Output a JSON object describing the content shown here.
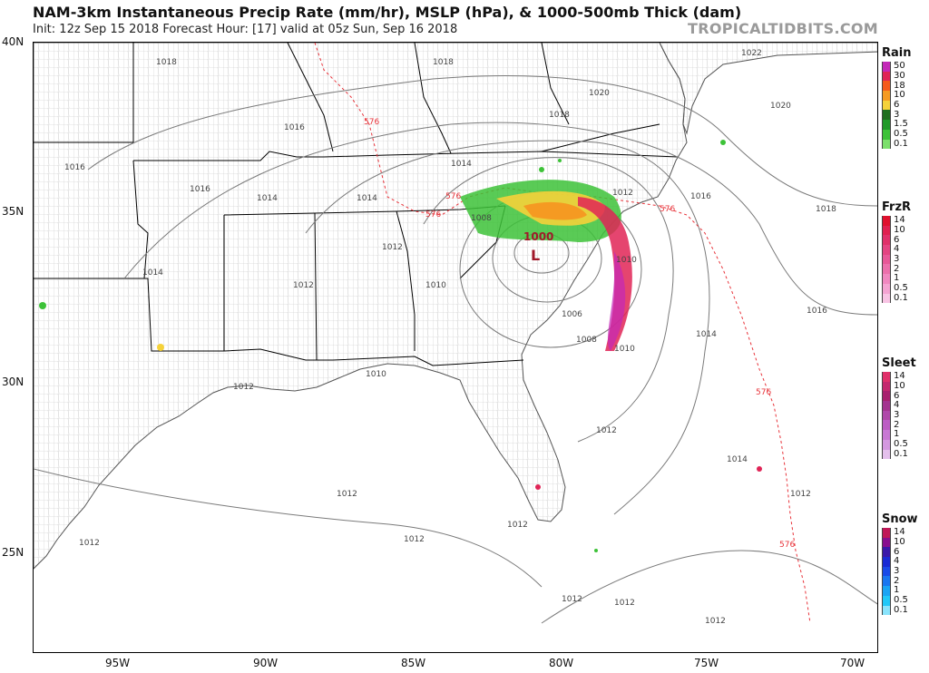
{
  "header": {
    "title": "NAM-3km Instantaneous Precip Rate (mm/hr), MSLP (hPa), & 1000-500mb Thick (dam)",
    "subtitle": "Init: 12z Sep 15 2018   Forecast Hour: [17]   valid at 05z Sun, Sep 16 2018",
    "brand": "TROPICALTIDBITS.COM"
  },
  "map": {
    "lat_labels": [
      "40N",
      "35N",
      "30N",
      "25N"
    ],
    "lon_labels": [
      "95W",
      "90W",
      "85W",
      "80W",
      "75W",
      "70W"
    ],
    "low_center": {
      "pressure": "1000",
      "symbol": "L"
    },
    "isobar_labels": [
      "1018",
      "1016",
      "1016",
      "1016",
      "1014",
      "1014",
      "1014",
      "1014",
      "1012",
      "1012",
      "1012",
      "1012",
      "1012",
      "1012",
      "1012",
      "1012",
      "1012",
      "1010",
      "1010",
      "1010",
      "1008",
      "1006",
      "1008",
      "1010",
      "1014",
      "1016",
      "1016",
      "1018",
      "1018",
      "1018",
      "1020",
      "1020",
      "1022",
      "1014",
      "1012",
      "1012",
      "1012",
      "1012"
    ],
    "thickness_labels": [
      "576",
      "576",
      "576",
      "576",
      "576",
      "576"
    ],
    "colors": {
      "isobar": "#7a7a7a",
      "thickness": "#e8333a",
      "state_border": "#000000",
      "county_border": "#bdbdbd",
      "coast": "#555555"
    }
  },
  "legend": {
    "rain": {
      "title": "Rain",
      "labels": [
        "50",
        "30",
        "18",
        "10",
        "6",
        "3",
        "1.5",
        "0.5",
        "0.1"
      ],
      "colors": [
        "#c428b8",
        "#e02456",
        "#f55a1c",
        "#f59a22",
        "#f5d23a",
        "#1e6e1e",
        "#1f9a28",
        "#3dc238",
        "#7ce06c"
      ]
    },
    "frzr": {
      "title": "FrzR",
      "labels": [
        "14",
        "10",
        "6",
        "4",
        "3",
        "2",
        "1",
        "0.5",
        "0.1"
      ],
      "colors": [
        "#e0102e",
        "#e02050",
        "#e0306a",
        "#e44482",
        "#e85898",
        "#ec70ac",
        "#f088c0",
        "#f4a4d2",
        "#f8c4e4"
      ]
    },
    "sleet": {
      "title": "Sleet",
      "labels": [
        "14",
        "10",
        "6",
        "4",
        "3",
        "2",
        "1",
        "0.5",
        "0.1"
      ],
      "colors": [
        "#e0306a",
        "#c4286e",
        "#a8206e",
        "#a43490",
        "#b048aa",
        "#bc5cc4",
        "#c878d4",
        "#d498e0",
        "#e4c0ec"
      ]
    },
    "snow": {
      "title": "Snow",
      "labels": [
        "14",
        "10",
        "6",
        "4",
        "3",
        "2",
        "1",
        "0.5",
        "0.1"
      ],
      "colors": [
        "#c01858",
        "#880e8e",
        "#3a18a8",
        "#1a2ad4",
        "#1a4ae8",
        "#1a76f0",
        "#1aa4f4",
        "#20c8f8",
        "#8ae4fc"
      ]
    }
  }
}
